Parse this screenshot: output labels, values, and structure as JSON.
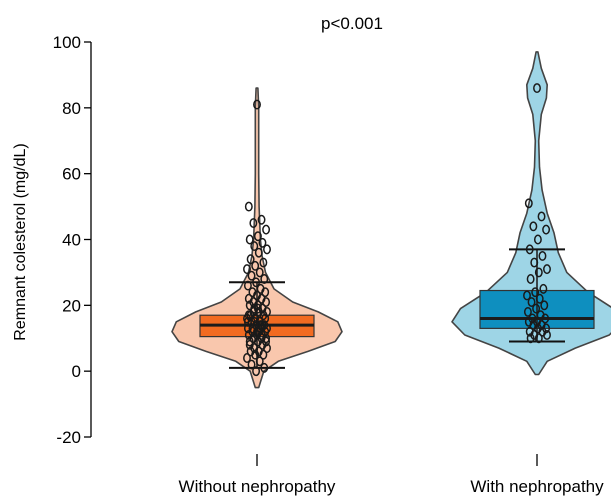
{
  "chart_data": {
    "type": "violin",
    "annotation": "p<0.001",
    "ylabel": "Remnant colesterol (mg/dL)",
    "ylim": [
      -20,
      100
    ],
    "yticks": [
      -20,
      0,
      20,
      40,
      60,
      80,
      100
    ],
    "yticks_labels": [
      "-20",
      "0",
      "20",
      "40",
      "60",
      "80",
      "100"
    ],
    "categories": [
      "Without nephropathy",
      "With nephropathy"
    ],
    "grid": false,
    "groups": [
      {
        "category": "Without nephropathy",
        "violin_color": "#f9c7ad",
        "box_color": "#f26b21",
        "q1": 10.5,
        "median": 14,
        "q3": 17,
        "whisker_low": 1,
        "whisker_high": 27,
        "density": [
          [
            -5,
            0.02
          ],
          [
            0,
            0.08
          ],
          [
            3,
            0.25
          ],
          [
            6,
            0.6
          ],
          [
            9,
            0.92
          ],
          [
            12,
            1.0
          ],
          [
            15,
            0.95
          ],
          [
            18,
            0.72
          ],
          [
            21,
            0.42
          ],
          [
            25,
            0.2
          ],
          [
            30,
            0.1
          ],
          [
            35,
            0.06
          ],
          [
            40,
            0.04
          ],
          [
            50,
            0.025
          ],
          [
            60,
            0.02
          ],
          [
            70,
            0.02
          ],
          [
            80,
            0.02
          ],
          [
            86,
            0.01
          ]
        ],
        "points": [
          81,
          50,
          46,
          45,
          43,
          41,
          40,
          39,
          38,
          37,
          36,
          34,
          33,
          32,
          31,
          30,
          29,
          28,
          27,
          26,
          25,
          24,
          24,
          23,
          22,
          22,
          21,
          21,
          20,
          20,
          19,
          19,
          18,
          18,
          17,
          17,
          16,
          16,
          15,
          15,
          14,
          14,
          13,
          13,
          12,
          12,
          11,
          11,
          10,
          10,
          9,
          9,
          8,
          8,
          7,
          7,
          6,
          6,
          5,
          5,
          4,
          3,
          2,
          1,
          0,
          15,
          14,
          13,
          16,
          12,
          17,
          11,
          18,
          10,
          19,
          9,
          14,
          15,
          13,
          12
        ]
      },
      {
        "category": "With nephropathy",
        "violin_color": "#9ed5e6",
        "box_color": "#0e8fbf",
        "q1": 13,
        "median": 16,
        "q3": 24.5,
        "whisker_low": 9,
        "whisker_high": 37,
        "density": [
          [
            -1,
            0.02
          ],
          [
            3,
            0.12
          ],
          [
            7,
            0.45
          ],
          [
            11,
            0.85
          ],
          [
            15,
            1.0
          ],
          [
            19,
            0.9
          ],
          [
            24,
            0.6
          ],
          [
            30,
            0.35
          ],
          [
            36,
            0.25
          ],
          [
            42,
            0.2
          ],
          [
            48,
            0.12
          ],
          [
            55,
            0.06
          ],
          [
            62,
            0.03
          ],
          [
            70,
            0.02
          ],
          [
            78,
            0.05
          ],
          [
            83,
            0.11
          ],
          [
            87,
            0.12
          ],
          [
            92,
            0.05
          ],
          [
            97,
            0.01
          ]
        ],
        "points": [
          86,
          51,
          47,
          44,
          43,
          40,
          37,
          35,
          33,
          31,
          30,
          28,
          25,
          24,
          23,
          22,
          21,
          20,
          19,
          18,
          17,
          16,
          16,
          15,
          15,
          14,
          14,
          13,
          13,
          12,
          12,
          11,
          11,
          10,
          10
        ]
      }
    ]
  }
}
